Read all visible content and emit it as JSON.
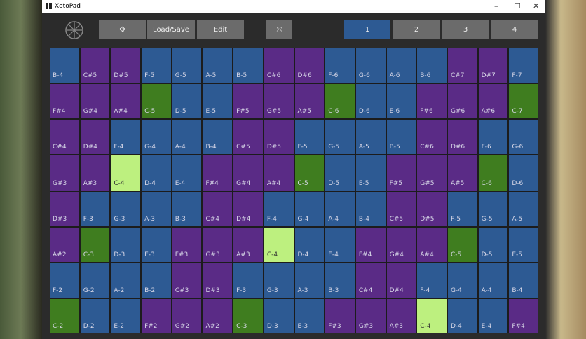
{
  "window": {
    "title": "XotoPad"
  },
  "toolbar": {
    "buttons": [
      "Load/Save",
      "Edit"
    ],
    "pages": [
      "1",
      "2",
      "3",
      "4"
    ],
    "selected_page": 0
  },
  "pads": {
    "colors": {
      "sharp": "#5a2b86",
      "natural": "#2d5a93",
      "root": "#3f7d1f",
      "highlight": "#bdf07f"
    },
    "highlight": "C-4",
    "rows": [
      [
        "B-4",
        "C#5",
        "D#5",
        "F-5",
        "G-5",
        "A-5",
        "B-5",
        "C#6",
        "D#6",
        "F-6",
        "G-6",
        "A-6",
        "B-6",
        "C#7",
        "D#7",
        "F-7"
      ],
      [
        "F#4",
        "G#4",
        "A#4",
        "C-5",
        "D-5",
        "E-5",
        "F#5",
        "G#5",
        "A#5",
        "C-6",
        "D-6",
        "E-6",
        "F#6",
        "G#6",
        "A#6",
        "C-7"
      ],
      [
        "C#4",
        "D#4",
        "F-4",
        "G-4",
        "A-4",
        "B-4",
        "C#5",
        "D#5",
        "F-5",
        "G-5",
        "A-5",
        "B-5",
        "C#6",
        "D#6",
        "F-6",
        "G-6"
      ],
      [
        "G#3",
        "A#3",
        "C-4",
        "D-4",
        "E-4",
        "F#4",
        "G#4",
        "A#4",
        "C-5",
        "D-5",
        "E-5",
        "F#5",
        "G#5",
        "A#5",
        "C-6",
        "D-6"
      ],
      [
        "D#3",
        "F-3",
        "G-3",
        "A-3",
        "B-3",
        "C#4",
        "D#4",
        "F-4",
        "G-4",
        "A-4",
        "B-4",
        "C#5",
        "D#5",
        "F-5",
        "G-5",
        "A-5"
      ],
      [
        "A#2",
        "C-3",
        "D-3",
        "E-3",
        "F#3",
        "G#3",
        "A#3",
        "C-4",
        "D-4",
        "E-4",
        "F#4",
        "G#4",
        "A#4",
        "C-5",
        "D-5",
        "E-5"
      ],
      [
        "F-2",
        "G-2",
        "A-2",
        "B-2",
        "C#3",
        "D#3",
        "F-3",
        "G-3",
        "A-3",
        "B-3",
        "C#4",
        "D#4",
        "F-4",
        "G-4",
        "A-4",
        "B-4"
      ],
      [
        "C-2",
        "D-2",
        "E-2",
        "F#2",
        "G#2",
        "A#2",
        "C-3",
        "D-3",
        "E-3",
        "F#3",
        "G#3",
        "A#3",
        "C-4",
        "D-4",
        "E-4",
        "F#4"
      ]
    ]
  }
}
